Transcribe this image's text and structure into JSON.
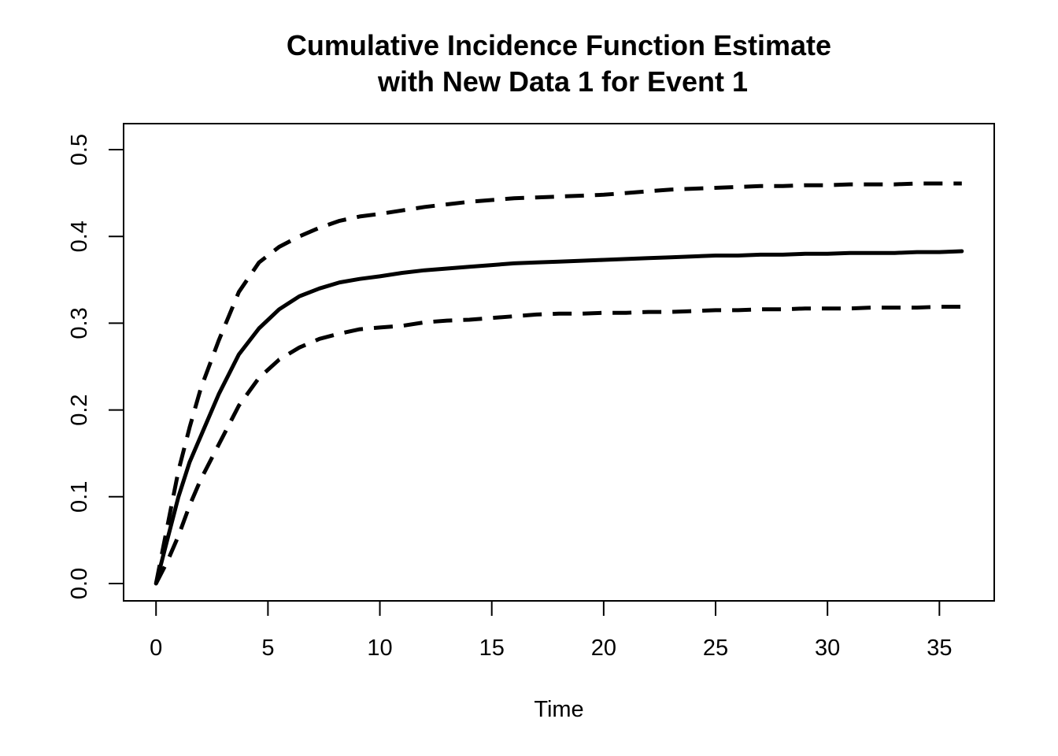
{
  "chart_data": {
    "type": "line",
    "title": "Cumulative Incidence Function Estimate",
    "subtitle": "with New Data 1 for Event 1",
    "xlabel": "Time",
    "ylabel": "",
    "xlim": [
      -1.45,
      37.45
    ],
    "ylim": [
      -0.02,
      0.53
    ],
    "x_ticks": [
      0,
      5,
      10,
      15,
      20,
      25,
      30,
      35
    ],
    "x_tick_labels": [
      "0",
      "5",
      "10",
      "15",
      "20",
      "25",
      "30",
      "35"
    ],
    "y_ticks": [
      0.0,
      0.1,
      0.2,
      0.3,
      0.4,
      0.5
    ],
    "y_tick_labels": [
      "0.0",
      "0.1",
      "0.2",
      "0.3",
      "0.4",
      "0.5"
    ],
    "grid": false,
    "legend": "none",
    "line_color": "#000000",
    "series": [
      {
        "style": "solid",
        "x": [
          0,
          0.5,
          1,
          1.5,
          2,
          2.8,
          3.7,
          4.6,
          5.5,
          6.4,
          7.3,
          8.2,
          9.1,
          10,
          11,
          12,
          13,
          14,
          15,
          16,
          17,
          18,
          19,
          20,
          21,
          22,
          23,
          24,
          25,
          26,
          27,
          28,
          29,
          30,
          31,
          32,
          33,
          34,
          35,
          36
        ],
        "values": [
          0.0,
          0.05,
          0.1,
          0.14,
          0.17,
          0.218,
          0.264,
          0.294,
          0.316,
          0.331,
          0.34,
          0.347,
          0.351,
          0.354,
          0.358,
          0.361,
          0.363,
          0.365,
          0.367,
          0.369,
          0.37,
          0.371,
          0.372,
          0.373,
          0.374,
          0.375,
          0.376,
          0.377,
          0.378,
          0.378,
          0.379,
          0.379,
          0.38,
          0.38,
          0.381,
          0.381,
          0.381,
          0.382,
          0.382,
          0.383
        ]
      },
      {
        "style": "dashed",
        "x": [
          0,
          0.5,
          1,
          1.5,
          2,
          2.8,
          3.7,
          4.6,
          5.5,
          6.4,
          7.3,
          8.2,
          9.1,
          10,
          11,
          12,
          13,
          14,
          15,
          16,
          17,
          18,
          19,
          20,
          21,
          22,
          23,
          24,
          25,
          26,
          27,
          28,
          29,
          30,
          31,
          32,
          33,
          34,
          35,
          36
        ],
        "values": [
          0.0,
          0.065,
          0.13,
          0.18,
          0.225,
          0.28,
          0.336,
          0.37,
          0.388,
          0.4,
          0.41,
          0.418,
          0.423,
          0.426,
          0.43,
          0.434,
          0.437,
          0.44,
          0.442,
          0.444,
          0.445,
          0.446,
          0.447,
          0.448,
          0.45,
          0.452,
          0.454,
          0.455,
          0.456,
          0.457,
          0.458,
          0.458,
          0.459,
          0.459,
          0.46,
          0.46,
          0.46,
          0.461,
          0.461,
          0.461
        ]
      },
      {
        "style": "dashed",
        "x": [
          0,
          0.5,
          1,
          1.5,
          2,
          2.8,
          3.7,
          4.6,
          5.5,
          6.4,
          7.3,
          8.2,
          9.1,
          10,
          11,
          12,
          13,
          14,
          15,
          16,
          17,
          18,
          19,
          20,
          21,
          22,
          23,
          24,
          25,
          26,
          27,
          28,
          29,
          30,
          31,
          32,
          33,
          34,
          35,
          36
        ],
        "values": [
          0.0,
          0.025,
          0.055,
          0.09,
          0.12,
          0.16,
          0.205,
          0.237,
          0.258,
          0.272,
          0.282,
          0.288,
          0.293,
          0.295,
          0.297,
          0.301,
          0.303,
          0.304,
          0.306,
          0.308,
          0.31,
          0.311,
          0.311,
          0.312,
          0.312,
          0.313,
          0.313,
          0.314,
          0.315,
          0.315,
          0.316,
          0.316,
          0.317,
          0.317,
          0.317,
          0.318,
          0.318,
          0.318,
          0.319,
          0.319
        ]
      }
    ]
  }
}
